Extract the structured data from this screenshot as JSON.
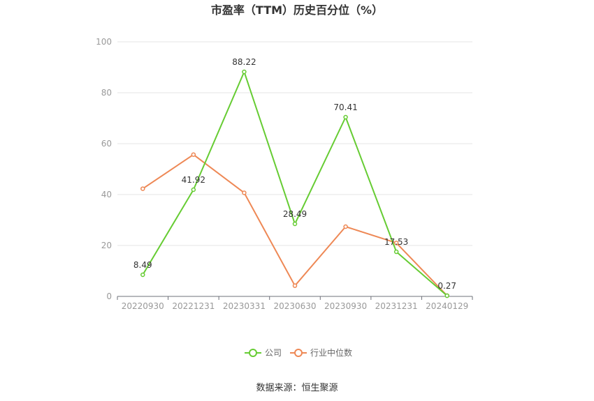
{
  "chart_data": {
    "type": "line",
    "title": "市盈率（TTM）历史百分位（%）",
    "categories": [
      "20220930",
      "20221231",
      "20230331",
      "20230630",
      "20230930",
      "20231231",
      "20240129"
    ],
    "ylim": [
      0,
      100
    ],
    "yticks": [
      "0",
      "20",
      "40",
      "60",
      "80",
      "100"
    ],
    "grid": true,
    "legend_position": "bottom",
    "series": [
      {
        "name": "公司",
        "color": "#66cc33",
        "values": [
          8.49,
          41.92,
          88.22,
          28.49,
          70.41,
          17.53,
          0.27
        ],
        "labels": [
          "8.49",
          "41.92",
          "88.22",
          "28.49",
          "70.41",
          "17.53",
          "0.27"
        ]
      },
      {
        "name": "行业中位数",
        "color": "#ee8855",
        "values": [
          42.3,
          55.7,
          40.7,
          4.2,
          27.4,
          21.0,
          0.3
        ]
      }
    ]
  },
  "source_text": "数据来源：恒生聚源"
}
